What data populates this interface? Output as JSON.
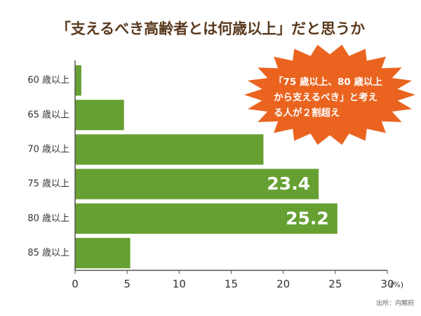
{
  "chart_data": {
    "type": "hbar",
    "title": "「支えるべき高齢者とは何歳以上」だと思うか",
    "categories": [
      "60 歳以上",
      "65 歳以上",
      "70 歳以上",
      "75 歳以上",
      "80 歳以上",
      "85 歳以上"
    ],
    "values": [
      0.6,
      4.7,
      18.1,
      23.4,
      25.2,
      5.3
    ],
    "value_labels": [
      null,
      null,
      null,
      "23.4",
      "25.2",
      null
    ],
    "color": "#66a032",
    "xlim": [
      0,
      30
    ],
    "xticks": [
      0,
      5,
      10,
      15,
      20,
      25,
      30
    ],
    "x_unit": "(%)",
    "annotation_lines": [
      "「75 歳以上、80 歳以上",
      "から支えるべき」と考え",
      "る人が２割超え"
    ],
    "annotation_color": "#ea6420",
    "source": "出所：内閣府"
  }
}
